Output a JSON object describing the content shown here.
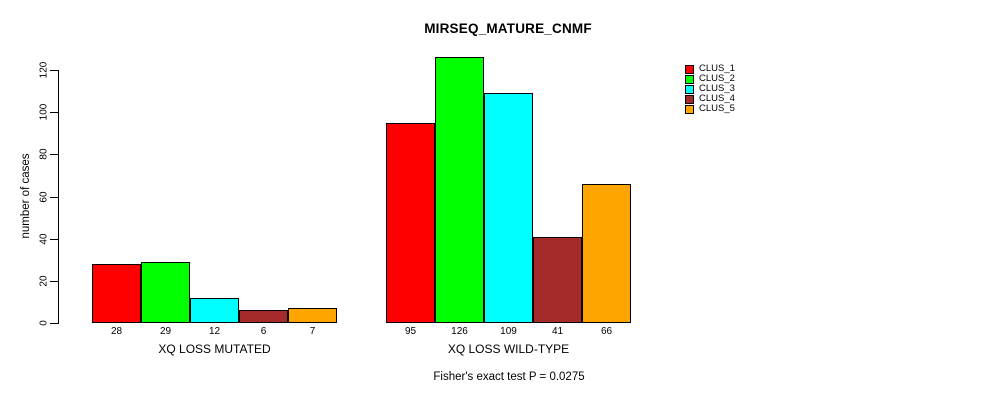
{
  "chart_data": {
    "type": "bar",
    "title": "MIRSEQ_MATURE_CNMF",
    "xlabel": "",
    "ylabel": "number of cases",
    "ylim": [
      0,
      120
    ],
    "yticks": [
      0,
      20,
      40,
      60,
      80,
      100,
      120
    ],
    "grid": false,
    "legend_position": "top-right",
    "bar_value_labels_shown": true,
    "annotation": "Fisher's exact test P = 0.0275",
    "categories": [
      "XQ LOSS MUTATED",
      "XQ LOSS WILD-TYPE"
    ],
    "groups": [
      {
        "label": "XQ LOSS MUTATED",
        "values": [
          28,
          29,
          12,
          6,
          7
        ]
      },
      {
        "label": "XQ LOSS WILD-TYPE",
        "values": [
          95,
          126,
          109,
          41,
          66
        ]
      }
    ],
    "series": [
      {
        "name": "CLUS_1",
        "color": "#FF0000"
      },
      {
        "name": "CLUS_2",
        "color": "#00FF00"
      },
      {
        "name": "CLUS_3",
        "color": "#00FFFF"
      },
      {
        "name": "CLUS_4",
        "color": "#A52A2A"
      },
      {
        "name": "CLUS_5",
        "color": "#FFA500"
      }
    ],
    "colors": {
      "axis": "#000000",
      "text": "#000000",
      "background": "#FFFFFF"
    }
  }
}
